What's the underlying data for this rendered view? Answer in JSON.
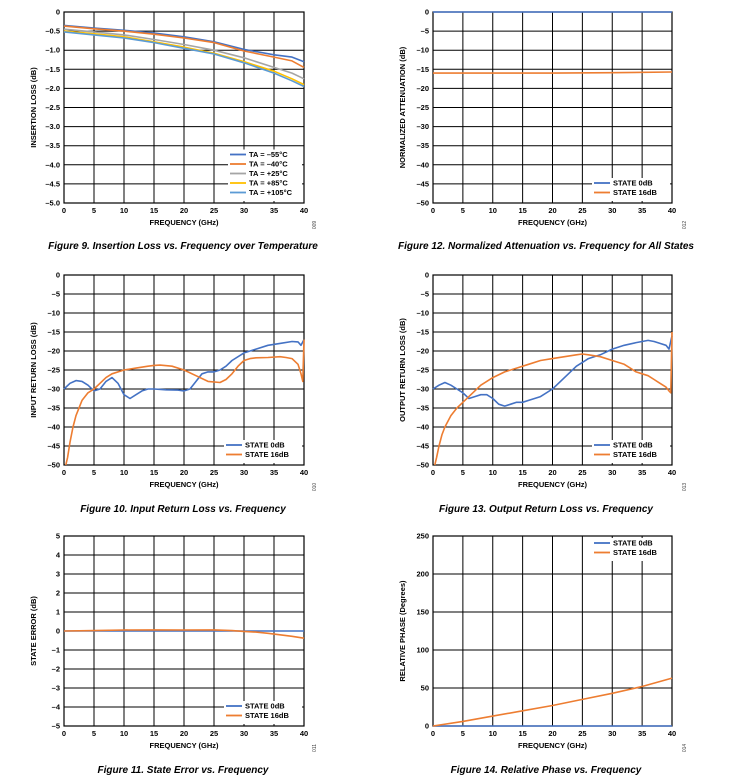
{
  "colors": {
    "blue": "#4472c4",
    "orange": "#ed7d31",
    "gray": "#a5a5a5",
    "yellow": "#ffc000",
    "lightblue": "#5b9bd5"
  },
  "chart_data": [
    {
      "id": "fig9",
      "type": "line",
      "caption": "Figure 9. Insertion Loss vs. Frequency over Temperature",
      "xlabel": "FREQUENCY (GHz)",
      "ylabel": "INSERTION LOSS (dB)",
      "code": "009",
      "xlim": [
        0,
        40
      ],
      "ylim": [
        -5.0,
        0
      ],
      "xticks": [
        0,
        5,
        10,
        15,
        20,
        25,
        30,
        35,
        40
      ],
      "xtick_labels": [
        "0",
        "5",
        "10",
        "15",
        "20",
        "25",
        "30",
        "35",
        "40"
      ],
      "yticks": [
        0,
        -0.5,
        -1.0,
        -1.5,
        -2.0,
        -2.5,
        -3.0,
        -3.5,
        -4.0,
        -4.5,
        -5.0
      ],
      "ytick_labels": [
        "0",
        "–0.5",
        "–1.0",
        "–1.5",
        "–2.0",
        "–2.5",
        "–3.0",
        "–3.5",
        "–4.0",
        "–4.5",
        "–5.0"
      ],
      "legend_position": "bottom-right",
      "series": [
        {
          "name": "TA = –55°C",
          "color": "blue",
          "x": [
            0,
            5,
            10,
            15,
            20,
            25,
            30,
            35,
            38,
            40
          ],
          "y": [
            -0.35,
            -0.42,
            -0.48,
            -0.55,
            -0.65,
            -0.78,
            -0.98,
            -1.12,
            -1.18,
            -1.3
          ]
        },
        {
          "name": "TA = –40°C",
          "color": "orange",
          "x": [
            0,
            5,
            10,
            15,
            20,
            25,
            30,
            35,
            38,
            40
          ],
          "y": [
            -0.37,
            -0.44,
            -0.5,
            -0.58,
            -0.68,
            -0.8,
            -1.02,
            -1.18,
            -1.28,
            -1.45
          ]
        },
        {
          "name": "TA = +25°C",
          "color": "gray",
          "x": [
            0,
            5,
            10,
            15,
            20,
            25,
            30,
            35,
            38,
            40
          ],
          "y": [
            -0.45,
            -0.52,
            -0.6,
            -0.72,
            -0.85,
            -1.0,
            -1.2,
            -1.45,
            -1.6,
            -1.75
          ]
        },
        {
          "name": "TA = +85°C",
          "color": "yellow",
          "x": [
            0,
            5,
            10,
            15,
            20,
            25,
            30,
            35,
            38,
            40
          ],
          "y": [
            -0.5,
            -0.57,
            -0.65,
            -0.78,
            -0.92,
            -1.08,
            -1.3,
            -1.55,
            -1.75,
            -1.9
          ]
        },
        {
          "name": "TA = +105°C",
          "color": "lightblue",
          "x": [
            0,
            5,
            10,
            15,
            20,
            25,
            30,
            35,
            38,
            40
          ],
          "y": [
            -0.52,
            -0.6,
            -0.68,
            -0.8,
            -0.95,
            -1.1,
            -1.33,
            -1.6,
            -1.8,
            -1.95
          ]
        }
      ]
    },
    {
      "id": "fig12",
      "type": "line",
      "caption": "Figure 12. Normalized Attenuation vs. Frequency for All States",
      "xlabel": "FREQUENCY (GHz)",
      "ylabel": "NORMALIZED ATTENUATION (dB)",
      "code": "012",
      "xlim": [
        0,
        40
      ],
      "ylim": [
        -50,
        0
      ],
      "xticks": [
        0,
        5,
        10,
        15,
        20,
        25,
        30,
        35,
        40
      ],
      "xtick_labels": [
        "0",
        "5",
        "10",
        "15",
        "20",
        "25",
        "30",
        "35",
        "40"
      ],
      "yticks": [
        0,
        -5,
        -10,
        -15,
        -20,
        -25,
        -30,
        -35,
        -40,
        -45,
        -50
      ],
      "ytick_labels": [
        "0",
        "–5",
        "–10",
        "–15",
        "–20",
        "–25",
        "–30",
        "–35",
        "–40",
        "–45",
        "–50"
      ],
      "legend_position": "bottom-right",
      "series": [
        {
          "name": "STATE 0dB",
          "color": "blue",
          "x": [
            0,
            40
          ],
          "y": [
            0,
            0
          ]
        },
        {
          "name": "STATE 16dB",
          "color": "orange",
          "x": [
            0,
            10,
            20,
            30,
            40
          ],
          "y": [
            -16.0,
            -16.0,
            -16.0,
            -15.9,
            -15.7
          ]
        }
      ]
    },
    {
      "id": "fig10",
      "type": "line",
      "caption": "Figure 10. Input Return Loss vs. Frequency",
      "xlabel": "FREQUENCY (GHz)",
      "ylabel": "INPUT RETURN LOSS (dB)",
      "code": "010",
      "xlim": [
        0,
        40
      ],
      "ylim": [
        -50,
        0
      ],
      "xticks": [
        0,
        5,
        10,
        15,
        20,
        25,
        30,
        35,
        40
      ],
      "xtick_labels": [
        "0",
        "5",
        "10",
        "15",
        "20",
        "25",
        "30",
        "35",
        "40"
      ],
      "yticks": [
        0,
        -5,
        -10,
        -15,
        -20,
        -25,
        -30,
        -35,
        -40,
        -45,
        -50
      ],
      "ytick_labels": [
        "0",
        "–5",
        "–10",
        "–15",
        "–20",
        "–25",
        "–30",
        "–35",
        "–40",
        "–45",
        "–50"
      ],
      "legend_position": "bottom-right",
      "series": [
        {
          "name": "STATE 0dB",
          "color": "blue",
          "x": [
            0,
            1,
            2,
            3,
            4,
            5,
            6,
            7,
            8,
            9,
            10,
            11,
            12,
            13,
            14,
            15,
            17,
            19,
            20,
            21,
            22,
            23,
            24,
            25,
            26,
            27,
            28,
            30,
            32,
            34,
            36,
            38,
            39,
            39.5,
            40
          ],
          "y": [
            -30,
            -28.5,
            -27.8,
            -28,
            -29,
            -30.5,
            -30,
            -28,
            -27,
            -28.5,
            -31.5,
            -32.5,
            -31.5,
            -30.5,
            -30,
            -30,
            -30.2,
            -30.3,
            -30.5,
            -30,
            -28,
            -26,
            -25.5,
            -25.5,
            -25,
            -24,
            -22.5,
            -20.5,
            -19.5,
            -18.5,
            -18,
            -17.5,
            -17.6,
            -18.5,
            -17
          ]
        },
        {
          "name": "STATE 16dB",
          "color": "orange",
          "x": [
            0.3,
            0.6,
            1,
            1.5,
            2,
            3,
            4,
            5,
            6,
            7,
            8,
            10,
            12,
            14,
            15,
            16,
            18,
            20,
            22,
            24,
            26,
            27,
            28,
            29,
            30,
            31,
            32,
            34,
            36,
            37,
            38,
            39,
            39.5,
            39.8,
            40
          ],
          "y": [
            -50,
            -48,
            -44,
            -40,
            -37,
            -33,
            -31,
            -30,
            -28.5,
            -27,
            -26,
            -25,
            -24.5,
            -24,
            -23.8,
            -23.7,
            -24,
            -25,
            -26.5,
            -28,
            -28.3,
            -27.5,
            -26,
            -24,
            -22.5,
            -22,
            -21.8,
            -21.7,
            -21.5,
            -21.7,
            -22,
            -23.5,
            -26,
            -28,
            -17
          ]
        }
      ]
    },
    {
      "id": "fig13",
      "type": "line",
      "caption": "Figure 13. Output Return Loss vs. Frequency",
      "xlabel": "FREQUENCY (GHz)",
      "ylabel": "OUTPUT RETURN LOSS (dB)",
      "code": "013",
      "xlim": [
        0,
        40
      ],
      "ylim": [
        -50,
        0
      ],
      "xticks": [
        0,
        5,
        10,
        15,
        20,
        25,
        30,
        35,
        40
      ],
      "xtick_labels": [
        "0",
        "5",
        "10",
        "15",
        "20",
        "25",
        "30",
        "35",
        "40"
      ],
      "yticks": [
        0,
        -5,
        -10,
        -15,
        -20,
        -25,
        -30,
        -35,
        -40,
        -45,
        -50
      ],
      "ytick_labels": [
        "0",
        "–5",
        "–10",
        "–15",
        "–20",
        "–25",
        "–30",
        "–35",
        "–40",
        "–45",
        "–50"
      ],
      "legend_position": "bottom-right",
      "series": [
        {
          "name": "STATE 0dB",
          "color": "blue",
          "x": [
            0,
            1,
            2,
            3,
            4,
            5,
            6,
            7,
            8,
            9,
            10,
            11,
            12,
            13,
            14,
            15,
            16,
            18,
            20,
            21,
            22,
            23,
            24,
            25,
            26,
            28,
            30,
            32,
            34,
            35,
            36,
            37,
            38,
            39,
            39.5,
            40
          ],
          "y": [
            -30,
            -29,
            -28.3,
            -29,
            -30,
            -31,
            -32.5,
            -32,
            -31.5,
            -31.5,
            -32.5,
            -34,
            -34.5,
            -34,
            -33.5,
            -33.5,
            -33,
            -32,
            -30,
            -28.5,
            -27,
            -25.5,
            -24,
            -23,
            -22,
            -21,
            -19.5,
            -18.5,
            -17.8,
            -17.5,
            -17.2,
            -17.5,
            -18,
            -18.5,
            -19.5,
            -16
          ]
        },
        {
          "name": "STATE 16dB",
          "color": "orange",
          "x": [
            0.3,
            0.6,
            1,
            1.5,
            2,
            3,
            4,
            5,
            6,
            7,
            8,
            10,
            12,
            14,
            16,
            18,
            20,
            22,
            24,
            25,
            26,
            28,
            30,
            32,
            33,
            34,
            35,
            36,
            37,
            38,
            39,
            39.5,
            39.8,
            40
          ],
          "y": [
            -50,
            -48,
            -45,
            -42,
            -40,
            -37,
            -35,
            -33.5,
            -32,
            -30.5,
            -29,
            -27,
            -25.5,
            -24.5,
            -23.5,
            -22.5,
            -22,
            -21.5,
            -21,
            -20.8,
            -21,
            -21.5,
            -22.5,
            -23.5,
            -24.5,
            -25.5,
            -26,
            -26.5,
            -27.5,
            -28.5,
            -29.5,
            -30.5,
            -31,
            -15
          ]
        }
      ]
    },
    {
      "id": "fig11",
      "type": "line",
      "caption": "Figure 11. State Error vs. Frequency",
      "xlabel": "FREQUENCY (GHz)",
      "ylabel": "STATE ERROR (dB)",
      "code": "011",
      "xlim": [
        0,
        40
      ],
      "ylim": [
        -5,
        5
      ],
      "xticks": [
        0,
        5,
        10,
        15,
        20,
        25,
        30,
        35,
        40
      ],
      "xtick_labels": [
        "0",
        "5",
        "10",
        "15",
        "20",
        "25",
        "30",
        "35",
        "40"
      ],
      "yticks": [
        5,
        4,
        3,
        2,
        1,
        0,
        -1,
        -2,
        -3,
        -4,
        -5
      ],
      "ytick_labels": [
        "5",
        "4",
        "3",
        "2",
        "1",
        "0",
        "–1",
        "–2",
        "–3",
        "–4",
        "–5"
      ],
      "legend_position": "bottom-right",
      "series": [
        {
          "name": "STATE 0dB",
          "color": "blue",
          "x": [
            0,
            40
          ],
          "y": [
            0,
            0
          ]
        },
        {
          "name": "STATE 16dB",
          "color": "orange",
          "x": [
            0,
            5,
            10,
            15,
            20,
            25,
            28,
            30,
            32,
            34,
            36,
            38,
            40
          ],
          "y": [
            0.0,
            0.02,
            0.05,
            0.06,
            0.05,
            0.06,
            0.02,
            -0.02,
            -0.06,
            -0.12,
            -0.2,
            -0.28,
            -0.38
          ]
        }
      ]
    },
    {
      "id": "fig14",
      "type": "line",
      "caption": "Figure 14. Relative Phase vs. Frequency",
      "xlabel": "FREQUENCY (GHz)",
      "ylabel": "RELATIVE PHASE (Degrees)",
      "code": "014",
      "xlim": [
        0,
        40
      ],
      "ylim": [
        0,
        250
      ],
      "xticks": [
        0,
        5,
        10,
        15,
        20,
        25,
        30,
        35,
        40
      ],
      "xtick_labels": [
        "0",
        "5",
        "10",
        "15",
        "20",
        "25",
        "30",
        "35",
        "40"
      ],
      "yticks": [
        250,
        200,
        150,
        100,
        50,
        0
      ],
      "ytick_labels": [
        "250",
        "200",
        "150",
        "100",
        "50",
        "0"
      ],
      "legend_position": "top-right",
      "series": [
        {
          "name": "STATE 0dB",
          "color": "blue",
          "x": [
            0,
            40
          ],
          "y": [
            0,
            0
          ]
        },
        {
          "name": "STATE 16dB",
          "color": "orange",
          "x": [
            0,
            5,
            10,
            15,
            20,
            25,
            30,
            35,
            40
          ],
          "y": [
            0,
            6,
            13,
            20,
            27,
            35,
            43,
            52,
            63
          ]
        }
      ]
    }
  ]
}
